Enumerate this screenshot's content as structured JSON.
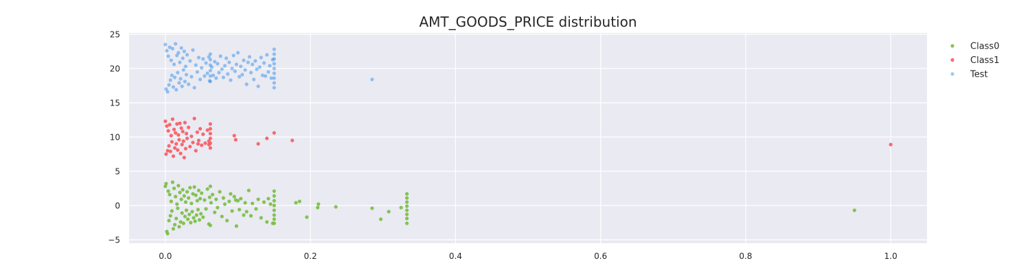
{
  "chart_data": {
    "type": "scatter",
    "title": "AMT_GOODS_PRICE distribution",
    "xlabel": "",
    "ylabel": "",
    "xlim": [
      -0.05,
      1.05
    ],
    "ylim": [
      -5.5,
      25.2
    ],
    "xticks": [
      0.0,
      0.2,
      0.4,
      0.6,
      0.8,
      1.0
    ],
    "xtick_labels": [
      "0.0",
      "0.2",
      "0.4",
      "0.6",
      "0.8",
      "1.0"
    ],
    "yticks": [
      -5,
      0,
      5,
      10,
      15,
      20,
      25
    ],
    "ytick_labels": [
      "−5",
      "0",
      "5",
      "10",
      "15",
      "20",
      "25"
    ],
    "grid": true,
    "legend_position": "top-right outside",
    "series": [
      {
        "name": "Class0",
        "color": "#77bf3f",
        "opacity": 0.9,
        "points": [
          [
            0.0,
            2.8
          ],
          [
            0.001,
            3.2
          ],
          [
            0.002,
            -3.8
          ],
          [
            0.003,
            -4.1
          ],
          [
            0.004,
            2.1
          ],
          [
            0.005,
            -2.2
          ],
          [
            0.006,
            1.6
          ],
          [
            0.007,
            -1.5
          ],
          [
            0.008,
            0.6
          ],
          [
            0.009,
            -0.8
          ],
          [
            0.01,
            3.4
          ],
          [
            0.011,
            -3.4
          ],
          [
            0.012,
            2.5
          ],
          [
            0.013,
            -2.8
          ],
          [
            0.014,
            1.3
          ],
          [
            0.015,
            -1.9
          ],
          [
            0.016,
            0.2
          ],
          [
            0.017,
            -0.4
          ],
          [
            0.018,
            2.9
          ],
          [
            0.019,
            -3.1
          ],
          [
            0.02,
            1.9
          ],
          [
            0.021,
            -2.4
          ],
          [
            0.022,
            0.9
          ],
          [
            0.023,
            -1.1
          ],
          [
            0.024,
            2.3
          ],
          [
            0.025,
            -2.6
          ],
          [
            0.026,
            1.4
          ],
          [
            0.027,
            -1.6
          ],
          [
            0.028,
            0.5
          ],
          [
            0.029,
            -0.7
          ],
          [
            0.03,
            2.0
          ],
          [
            0.031,
            -2.0
          ],
          [
            0.032,
            1.1
          ],
          [
            0.033,
            -1.3
          ],
          [
            0.034,
            2.6
          ],
          [
            0.035,
            -2.5
          ],
          [
            0.036,
            0.3
          ],
          [
            0.037,
            -0.9
          ],
          [
            0.038,
            1.7
          ],
          [
            0.039,
            -1.8
          ],
          [
            0.04,
            2.7
          ],
          [
            0.041,
            -2.3
          ],
          [
            0.042,
            1.5
          ],
          [
            0.043,
            -1.4
          ],
          [
            0.044,
            0.7
          ],
          [
            0.045,
            -0.6
          ],
          [
            0.046,
            2.2
          ],
          [
            0.047,
            -2.1
          ],
          [
            0.048,
            1.0
          ],
          [
            0.049,
            -1.2
          ],
          [
            0.05,
            1.8
          ],
          [
            0.052,
            -1.7
          ],
          [
            0.054,
            0.8
          ],
          [
            0.056,
            -0.5
          ],
          [
            0.058,
            2.4
          ],
          [
            0.06,
            -2.7
          ],
          [
            0.061,
            1.2
          ],
          [
            0.062,
            2.8
          ],
          [
            0.062,
            -2.9
          ],
          [
            0.063,
            0.4
          ],
          [
            0.065,
            1.6
          ],
          [
            0.068,
            -1.0
          ],
          [
            0.07,
            0.9
          ],
          [
            0.072,
            -0.3
          ],
          [
            0.075,
            2.0
          ],
          [
            0.078,
            -1.6
          ],
          [
            0.08,
            1.1
          ],
          [
            0.082,
            0.2
          ],
          [
            0.085,
            -2.2
          ],
          [
            0.088,
            0.6
          ],
          [
            0.09,
            1.7
          ],
          [
            0.092,
            -0.8
          ],
          [
            0.095,
            1.3
          ],
          [
            0.097,
            0.8
          ],
          [
            0.098,
            -3.0
          ],
          [
            0.1,
            0.7
          ],
          [
            0.102,
            -0.6
          ],
          [
            0.104,
            1.0
          ],
          [
            0.108,
            -1.4
          ],
          [
            0.11,
            0.4
          ],
          [
            0.112,
            -0.9
          ],
          [
            0.115,
            2.2
          ],
          [
            0.118,
            -1.5
          ],
          [
            0.12,
            0.3
          ],
          [
            0.125,
            -0.5
          ],
          [
            0.128,
            0.9
          ],
          [
            0.132,
            -1.8
          ],
          [
            0.136,
            0.5
          ],
          [
            0.14,
            -2.4
          ],
          [
            0.142,
            1.0
          ],
          [
            0.145,
            0.2
          ],
          [
            0.148,
            -2.6
          ],
          [
            0.15,
            2.1
          ],
          [
            0.15,
            1.4
          ],
          [
            0.15,
            0.7
          ],
          [
            0.15,
            0.0
          ],
          [
            0.15,
            -0.7
          ],
          [
            0.15,
            -1.4
          ],
          [
            0.15,
            -2.0
          ],
          [
            0.15,
            -2.6
          ],
          [
            0.18,
            0.4
          ],
          [
            0.185,
            0.6
          ],
          [
            0.195,
            -1.7
          ],
          [
            0.21,
            -0.3
          ],
          [
            0.211,
            0.2
          ],
          [
            0.235,
            -0.2
          ],
          [
            0.285,
            -0.4
          ],
          [
            0.297,
            -2.0
          ],
          [
            0.308,
            -0.9
          ],
          [
            0.325,
            -0.3
          ],
          [
            0.333,
            1.7
          ],
          [
            0.333,
            1.1
          ],
          [
            0.333,
            0.5
          ],
          [
            0.333,
            -0.1
          ],
          [
            0.333,
            -0.7
          ],
          [
            0.333,
            -1.3
          ],
          [
            0.333,
            -1.9
          ],
          [
            0.333,
            -2.6
          ],
          [
            0.95,
            -0.7
          ]
        ]
      },
      {
        "name": "Class1",
        "color": "#f85a5f",
        "opacity": 0.9,
        "points": [
          [
            0.0,
            12.3
          ],
          [
            0.001,
            7.5
          ],
          [
            0.002,
            11.6
          ],
          [
            0.003,
            8.0
          ],
          [
            0.004,
            10.9
          ],
          [
            0.005,
            8.7
          ],
          [
            0.006,
            11.8
          ],
          [
            0.007,
            7.9
          ],
          [
            0.008,
            10.2
          ],
          [
            0.009,
            9.3
          ],
          [
            0.01,
            12.6
          ],
          [
            0.011,
            7.2
          ],
          [
            0.012,
            11.1
          ],
          [
            0.013,
            8.4
          ],
          [
            0.014,
            10.6
          ],
          [
            0.015,
            9.0
          ],
          [
            0.016,
            11.9
          ],
          [
            0.017,
            8.1
          ],
          [
            0.018,
            10.3
          ],
          [
            0.019,
            9.6
          ],
          [
            0.02,
            12.0
          ],
          [
            0.021,
            7.6
          ],
          [
            0.022,
            11.3
          ],
          [
            0.023,
            8.9
          ],
          [
            0.024,
            10.8
          ],
          [
            0.025,
            9.4
          ],
          [
            0.026,
            7.0
          ],
          [
            0.027,
            12.1
          ],
          [
            0.028,
            8.3
          ],
          [
            0.029,
            10.5
          ],
          [
            0.03,
            9.8
          ],
          [
            0.032,
            11.4
          ],
          [
            0.034,
            8.6
          ],
          [
            0.036,
            10.1
          ],
          [
            0.038,
            9.2
          ],
          [
            0.04,
            12.7
          ],
          [
            0.042,
            8.0
          ],
          [
            0.044,
            10.7
          ],
          [
            0.046,
            9.5
          ],
          [
            0.048,
            11.2
          ],
          [
            0.05,
            8.8
          ],
          [
            0.052,
            10.4
          ],
          [
            0.055,
            9.1
          ],
          [
            0.058,
            11.0
          ],
          [
            0.06,
            8.9
          ],
          [
            0.062,
            11.9
          ],
          [
            0.062,
            11.2
          ],
          [
            0.062,
            10.5
          ],
          [
            0.062,
            9.8
          ],
          [
            0.062,
            9.1
          ],
          [
            0.062,
            8.4
          ],
          [
            0.045,
            9.0
          ],
          [
            0.06,
            9.4
          ],
          [
            0.095,
            10.2
          ],
          [
            0.097,
            9.6
          ],
          [
            0.128,
            9.0
          ],
          [
            0.14,
            9.8
          ],
          [
            0.15,
            10.6
          ],
          [
            0.175,
            9.5
          ],
          [
            1.0,
            8.9
          ]
        ]
      },
      {
        "name": "Test",
        "color": "#1f88e8",
        "opacity": 0.45,
        "points": [
          [
            0.0,
            23.5
          ],
          [
            0.001,
            17.0
          ],
          [
            0.002,
            22.6
          ],
          [
            0.003,
            16.6
          ],
          [
            0.004,
            21.8
          ],
          [
            0.005,
            17.6
          ],
          [
            0.006,
            23.1
          ],
          [
            0.007,
            18.3
          ],
          [
            0.008,
            21.2
          ],
          [
            0.009,
            19.0
          ],
          [
            0.01,
            22.9
          ],
          [
            0.011,
            17.3
          ],
          [
            0.012,
            20.6
          ],
          [
            0.013,
            18.7
          ],
          [
            0.014,
            23.6
          ],
          [
            0.015,
            16.9
          ],
          [
            0.016,
            21.9
          ],
          [
            0.017,
            19.4
          ],
          [
            0.018,
            22.3
          ],
          [
            0.019,
            17.9
          ],
          [
            0.02,
            20.9
          ],
          [
            0.021,
            18.5
          ],
          [
            0.022,
            23.0
          ],
          [
            0.023,
            17.4
          ],
          [
            0.024,
            21.5
          ],
          [
            0.025,
            19.8
          ],
          [
            0.026,
            22.5
          ],
          [
            0.027,
            18.1
          ],
          [
            0.028,
            20.3
          ],
          [
            0.029,
            19.1
          ],
          [
            0.03,
            22.0
          ],
          [
            0.032,
            17.7
          ],
          [
            0.034,
            21.1
          ],
          [
            0.036,
            18.8
          ],
          [
            0.038,
            22.7
          ],
          [
            0.04,
            17.2
          ],
          [
            0.042,
            20.5
          ],
          [
            0.044,
            19.5
          ],
          [
            0.046,
            21.6
          ],
          [
            0.048,
            18.4
          ],
          [
            0.05,
            20.1
          ],
          [
            0.052,
            21.4
          ],
          [
            0.054,
            18.9
          ],
          [
            0.056,
            20.8
          ],
          [
            0.058,
            19.3
          ],
          [
            0.06,
            21.7
          ],
          [
            0.061,
            18.2
          ],
          [
            0.062,
            22.1
          ],
          [
            0.062,
            21.3
          ],
          [
            0.062,
            20.5
          ],
          [
            0.062,
            19.7
          ],
          [
            0.062,
            18.9
          ],
          [
            0.062,
            18.1
          ],
          [
            0.064,
            20.2
          ],
          [
            0.066,
            19.0
          ],
          [
            0.068,
            21.0
          ],
          [
            0.07,
            18.6
          ],
          [
            0.072,
            20.7
          ],
          [
            0.074,
            19.4
          ],
          [
            0.076,
            21.8
          ],
          [
            0.078,
            19.9
          ],
          [
            0.08,
            18.7
          ],
          [
            0.082,
            20.4
          ],
          [
            0.084,
            21.5
          ],
          [
            0.086,
            19.2
          ],
          [
            0.088,
            20.9
          ],
          [
            0.09,
            18.3
          ],
          [
            0.092,
            20.0
          ],
          [
            0.094,
            21.9
          ],
          [
            0.096,
            19.6
          ],
          [
            0.098,
            20.6
          ],
          [
            0.1,
            22.3
          ],
          [
            0.102,
            18.8
          ],
          [
            0.104,
            20.3
          ],
          [
            0.106,
            19.1
          ],
          [
            0.108,
            21.2
          ],
          [
            0.11,
            19.8
          ],
          [
            0.112,
            17.7
          ],
          [
            0.114,
            20.9
          ],
          [
            0.116,
            21.7
          ],
          [
            0.118,
            19.4
          ],
          [
            0.12,
            20.6
          ],
          [
            0.122,
            18.4
          ],
          [
            0.124,
            21.1
          ],
          [
            0.126,
            19.9
          ],
          [
            0.128,
            17.4
          ],
          [
            0.13,
            20.2
          ],
          [
            0.132,
            21.6
          ],
          [
            0.134,
            19.0
          ],
          [
            0.136,
            20.8
          ],
          [
            0.138,
            18.9
          ],
          [
            0.14,
            22.0
          ],
          [
            0.142,
            19.5
          ],
          [
            0.144,
            20.4
          ],
          [
            0.146,
            18.6
          ],
          [
            0.148,
            21.3
          ],
          [
            0.15,
            22.8
          ],
          [
            0.15,
            22.1
          ],
          [
            0.15,
            21.4
          ],
          [
            0.15,
            20.7
          ],
          [
            0.15,
            20.0
          ],
          [
            0.15,
            19.3
          ],
          [
            0.15,
            18.6
          ],
          [
            0.15,
            17.9
          ],
          [
            0.15,
            17.2
          ],
          [
            0.285,
            18.4
          ]
        ]
      }
    ]
  }
}
